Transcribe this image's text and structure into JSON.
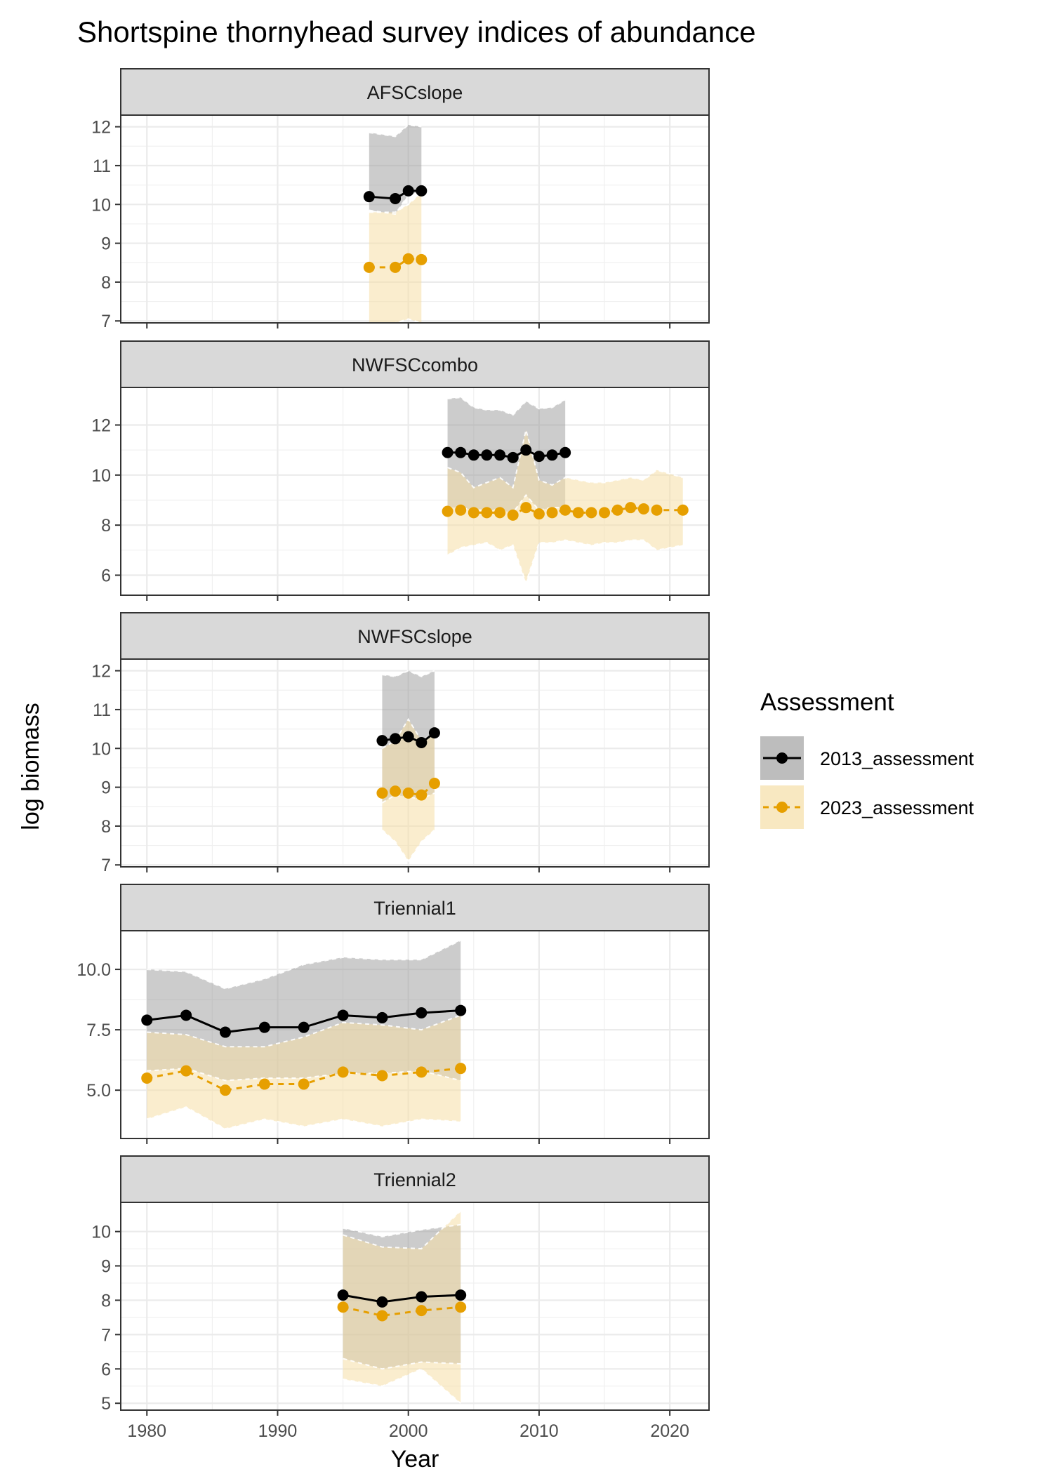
{
  "chart_data": {
    "type": "line",
    "title": "Shortspine thornyhead survey indices of abundance",
    "xlabel": "Year",
    "ylabel": "log biomass",
    "xlim": [
      1978,
      2023
    ],
    "x_ticks": [
      1980,
      1990,
      2000,
      2010,
      2020
    ],
    "grid": true,
    "legend": {
      "title": "Assessment",
      "position": "right",
      "entries": [
        {
          "name": "2013_assessment",
          "color": "#000000",
          "fill": "#999999",
          "linetype": "solid"
        },
        {
          "name": "2023_assessment",
          "color": "#E69F00",
          "fill": "#F5DEA6",
          "linetype": "dashed"
        }
      ]
    },
    "panels": [
      {
        "name": "AFSCslope",
        "ylim": [
          6.95,
          12.3
        ],
        "y_ticks": [
          7,
          8,
          9,
          10,
          11,
          12
        ],
        "series": [
          {
            "name": "2013_assessment",
            "x": [
              1997,
              1999,
              2000,
              2001
            ],
            "y": [
              10.2,
              10.15,
              10.35,
              10.35
            ],
            "lower": [
              9.85,
              9.75,
              10.25,
              10.3
            ],
            "upper": [
              11.85,
              11.75,
              12.05,
              12.0
            ]
          },
          {
            "name": "2023_assessment",
            "x": [
              1997,
              1999,
              2000,
              2001
            ],
            "y": [
              8.38,
              8.38,
              8.6,
              8.58
            ],
            "lower": [
              6.95,
              6.95,
              7.05,
              6.95
            ],
            "upper": [
              9.8,
              9.8,
              10.0,
              10.3
            ]
          }
        ]
      },
      {
        "name": "NWFSCcombo",
        "ylim": [
          5.2,
          13.5
        ],
        "y_ticks": [
          6,
          8,
          10,
          12
        ],
        "series": [
          {
            "name": "2013_assessment",
            "x": [
              2003,
              2004,
              2005,
              2006,
              2007,
              2008,
              2009,
              2010,
              2011,
              2012
            ],
            "y": [
              10.9,
              10.9,
              10.8,
              10.8,
              10.8,
              10.7,
              11.0,
              10.75,
              10.8,
              10.9
            ],
            "lower": [
              8.7,
              8.7,
              8.6,
              8.6,
              8.6,
              8.5,
              9.2,
              8.6,
              8.7,
              8.7
            ],
            "upper": [
              13.05,
              13.1,
              12.7,
              12.6,
              12.6,
              12.4,
              12.95,
              12.65,
              12.7,
              13.0
            ]
          },
          {
            "name": "2023_assessment",
            "x": [
              2003,
              2004,
              2005,
              2006,
              2007,
              2008,
              2009,
              2010,
              2011,
              2012,
              2013,
              2014,
              2015,
              2016,
              2017,
              2018,
              2019,
              2021
            ],
            "y": [
              8.55,
              8.6,
              8.5,
              8.5,
              8.5,
              8.4,
              8.7,
              8.45,
              8.5,
              8.6,
              8.5,
              8.5,
              8.5,
              8.6,
              8.7,
              8.65,
              8.6,
              8.6
            ],
            "lower": [
              6.8,
              7.1,
              7.2,
              7.3,
              7.0,
              7.2,
              5.7,
              7.3,
              7.3,
              7.4,
              7.3,
              7.2,
              7.3,
              7.3,
              7.4,
              7.4,
              7.0,
              7.2
            ],
            "upper": [
              10.3,
              10.1,
              9.5,
              9.7,
              9.9,
              9.5,
              11.8,
              9.8,
              9.6,
              9.9,
              9.8,
              9.7,
              9.7,
              9.8,
              9.9,
              9.8,
              10.2,
              9.9
            ]
          }
        ]
      },
      {
        "name": "NWFSCslope",
        "ylim": [
          6.95,
          12.3
        ],
        "y_ticks": [
          7,
          8,
          9,
          10,
          11,
          12
        ],
        "series": [
          {
            "name": "2013_assessment",
            "x": [
              1998,
              1999,
              2000,
              2001,
              2002
            ],
            "y": [
              10.2,
              10.25,
              10.3,
              10.15,
              10.4
            ],
            "lower": [
              8.6,
              8.8,
              8.75,
              8.7,
              8.85
            ],
            "upper": [
              11.9,
              11.85,
              12.0,
              11.85,
              12.0
            ]
          },
          {
            "name": "2023_assessment",
            "x": [
              1998,
              1999,
              2000,
              2001,
              2002
            ],
            "y": [
              8.85,
              8.9,
              8.85,
              8.8,
              9.1
            ],
            "lower": [
              7.9,
              7.6,
              7.1,
              7.6,
              7.9
            ],
            "upper": [
              10.0,
              10.2,
              10.75,
              10.2,
              10.4
            ]
          }
        ]
      },
      {
        "name": "Triennial1",
        "ylim": [
          3.0,
          11.6
        ],
        "y_ticks": [
          5.0,
          7.5,
          10.0
        ],
        "y_tick_labels": [
          "5.0",
          "7.5",
          "10.0"
        ],
        "series": [
          {
            "name": "2013_assessment",
            "x": [
              1980,
              1983,
              1986,
              1989,
              1992,
              1995,
              1998,
              2001,
              2004
            ],
            "y": [
              7.9,
              8.1,
              7.4,
              7.6,
              7.6,
              8.1,
              8.0,
              8.2,
              8.3
            ],
            "lower": [
              5.8,
              5.9,
              5.4,
              5.5,
              5.5,
              5.7,
              5.7,
              5.8,
              5.4
            ],
            "upper": [
              10.0,
              9.9,
              9.2,
              9.6,
              10.2,
              10.5,
              10.4,
              10.4,
              11.2
            ]
          },
          {
            "name": "2023_assessment",
            "x": [
              1980,
              1983,
              1986,
              1989,
              1992,
              1995,
              1998,
              2001,
              2004
            ],
            "y": [
              5.5,
              5.8,
              5.0,
              5.25,
              5.25,
              5.75,
              5.6,
              5.75,
              5.9
            ],
            "lower": [
              3.8,
              4.3,
              3.4,
              3.8,
              3.5,
              3.8,
              3.5,
              3.8,
              3.7
            ],
            "upper": [
              7.4,
              7.3,
              6.8,
              6.8,
              7.2,
              7.8,
              7.7,
              7.5,
              8.1
            ]
          }
        ]
      },
      {
        "name": "Triennial2",
        "ylim": [
          4.8,
          10.85
        ],
        "y_ticks": [
          5,
          6,
          7,
          8,
          9,
          10
        ],
        "series": [
          {
            "name": "2013_assessment",
            "x": [
              1995,
              1998,
              2001,
              2004
            ],
            "y": [
              8.15,
              7.95,
              8.1,
              8.15
            ],
            "lower": [
              6.3,
              6.0,
              6.2,
              6.15
            ],
            "upper": [
              10.1,
              9.85,
              10.05,
              10.2
            ]
          },
          {
            "name": "2023_assessment",
            "x": [
              1995,
              1998,
              2001,
              2004
            ],
            "y": [
              7.8,
              7.55,
              7.7,
              7.8
            ],
            "lower": [
              5.7,
              5.5,
              6.0,
              5.0
            ],
            "upper": [
              9.9,
              9.55,
              9.5,
              10.6
            ]
          }
        ]
      }
    ]
  }
}
